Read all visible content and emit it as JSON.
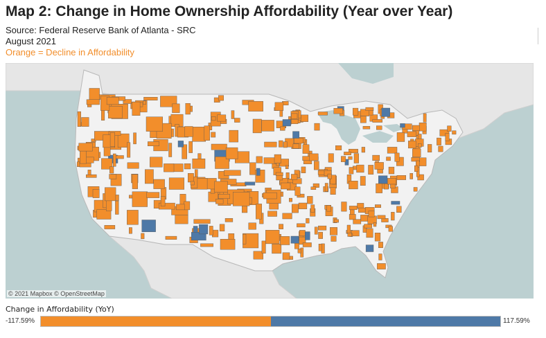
{
  "header": {
    "title": "Map 2: Change in Home Ownership Affordability (Year over Year)",
    "source": "Source: Federal Reserve Bank of Atlanta - SRC",
    "date": "August 2021",
    "note": "Orange = Decline in Affordability"
  },
  "map": {
    "credit": "© 2021 Mapbox © OpenStreetMap",
    "colors": {
      "water": "#bcd0d1",
      "land": "#f2f2f2",
      "decline": "#f28e2b",
      "improve": "#4e79a7",
      "border": "#b8b8b8"
    }
  },
  "legend": {
    "title": "Change in Affordability (YoY)",
    "min_label": "-117.59%",
    "max_label": "117.59%",
    "min_color": "#f28e2b",
    "max_color": "#4e79a7"
  }
}
